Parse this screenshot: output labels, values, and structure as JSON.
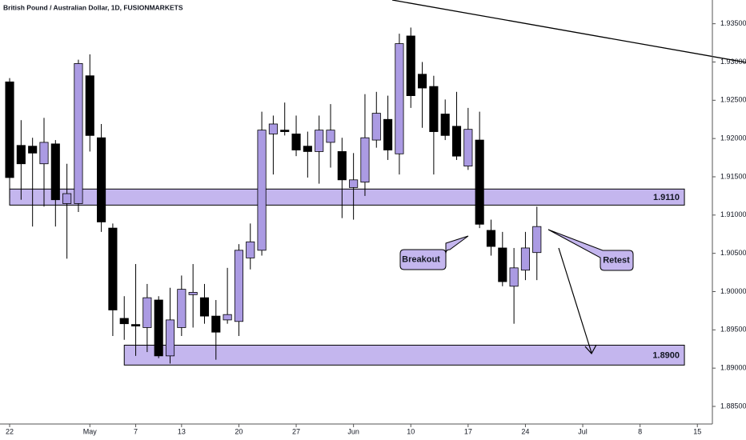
{
  "chart_data": {
    "type": "candlestick",
    "title": "British Pound / Australian Dollar, 1D, FUSIONMARKETS",
    "up_color": "#ab9be3",
    "down_color": "#000000",
    "zone_color": "#c4b6ee",
    "open": [
      1.9274,
      1.9191,
      1.919,
      1.9167,
      1.9193,
      1.9115,
      1.9115,
      1.9282,
      1.9201,
      1.9083,
      1.8965,
      1.8957,
      1.8953,
      1.8989,
      1.8916,
      1.8953,
      1.8996,
      1.8992,
      1.8968,
      1.8963,
      1.8961,
      1.9044,
      1.9054,
      1.9206,
      1.9211,
      1.9206,
      1.919,
      1.9183,
      1.9195,
      1.9183,
      1.9136,
      1.9143,
      1.9198,
      1.9225,
      1.918,
      1.9334,
      1.9284,
      1.9268,
      1.9232,
      1.9216,
      1.9164,
      1.9198,
      1.908,
      1.9057,
      1.9007,
      1.9028,
      1.9051
    ],
    "high": [
      1.9279,
      1.9224,
      1.9201,
      1.9227,
      1.9198,
      1.9167,
      1.9303,
      1.931,
      1.9219,
      1.9089,
      1.8994,
      1.9036,
      1.901,
      1.8994,
      1.9005,
      1.9021,
      1.9036,
      1.901,
      1.8989,
      1.9031,
      1.9062,
      1.9089,
      1.9235,
      1.923,
      1.9247,
      1.923,
      1.9209,
      1.923,
      1.9245,
      1.9201,
      1.9181,
      1.9258,
      1.9261,
      1.9256,
      1.9337,
      1.9345,
      1.93,
      1.9282,
      1.9251,
      1.9261,
      1.924,
      1.9235,
      1.9094,
      1.9078,
      1.9057,
      1.9078,
      1.9111
    ],
    "low": [
      1.9122,
      1.912,
      1.9085,
      1.9111,
      1.9085,
      1.9043,
      1.9104,
      1.9183,
      1.9078,
      1.8942,
      1.8937,
      1.8916,
      1.8921,
      1.8913,
      1.8906,
      1.8942,
      1.8953,
      1.8958,
      1.8911,
      1.8958,
      1.8942,
      1.9029,
      1.9047,
      1.9153,
      1.9204,
      1.9177,
      1.9149,
      1.9141,
      1.9162,
      1.9096,
      1.9094,
      1.9125,
      1.9188,
      1.9172,
      1.9153,
      1.924,
      1.9214,
      1.9153,
      1.9198,
      1.9172,
      1.9159,
      1.9083,
      1.9047,
      1.9007,
      1.8958,
      1.9015,
      1.9015
    ],
    "close": [
      1.9149,
      1.9167,
      1.9181,
      1.9195,
      1.912,
      1.9128,
      1.9298,
      1.9204,
      1.9091,
      1.8976,
      1.8958,
      1.8955,
      1.8992,
      1.8916,
      1.8963,
      1.9003,
      1.8999,
      1.8968,
      1.8947,
      1.897,
      1.9054,
      1.9065,
      1.9211,
      1.9219,
      1.9209,
      1.9185,
      1.9183,
      1.9211,
      1.9211,
      1.9146,
      1.9146,
      1.9201,
      1.9233,
      1.9185,
      1.9324,
      1.9256,
      1.9266,
      1.9209,
      1.9204,
      1.9177,
      1.9212,
      1.9088,
      1.9059,
      1.9013,
      1.9031,
      1.9057,
      1.9085
    ],
    "xlim": [
      -0.84,
      61.31
    ],
    "xticks": [
      {
        "value": 0,
        "label": "22"
      },
      {
        "value": 7,
        "label": "May"
      },
      {
        "value": 11,
        "label": "7"
      },
      {
        "value": 15,
        "label": "13"
      },
      {
        "value": 20,
        "label": "20"
      },
      {
        "value": 25,
        "label": "27"
      },
      {
        "value": 30,
        "label": "Jun"
      },
      {
        "value": 35,
        "label": "10"
      },
      {
        "value": 40,
        "label": "17"
      },
      {
        "value": 45,
        "label": "24"
      },
      {
        "value": 50,
        "label": "Jul"
      },
      {
        "value": 55,
        "label": "8"
      },
      {
        "value": 60,
        "label": "15"
      }
    ],
    "ylim": [
      1.8827,
      1.9381
    ],
    "yticks": [
      {
        "value": 1.935,
        "label": "1.93500"
      },
      {
        "value": 1.93,
        "label": "1.93000"
      },
      {
        "value": 1.925,
        "label": "1.92500"
      },
      {
        "value": 1.92,
        "label": "1.92000"
      },
      {
        "value": 1.915,
        "label": "1.91500"
      },
      {
        "value": 1.91,
        "label": "1.91000"
      },
      {
        "value": 1.905,
        "label": "1.90500"
      },
      {
        "value": 1.9,
        "label": "1.90000"
      },
      {
        "value": 1.895,
        "label": "1.89500"
      },
      {
        "value": 1.89,
        "label": "1.89000"
      },
      {
        "value": 1.885,
        "label": "1.88500"
      }
    ],
    "zones": [
      {
        "label": "1.9110",
        "low": 1.9113,
        "high": 1.9134,
        "start": 0,
        "end": 58.87
      },
      {
        "label": "1.8900",
        "low": 1.8904,
        "high": 1.893,
        "start": 10,
        "end": 58.87
      }
    ],
    "annotations": [
      "Breakout",
      "Retest"
    ]
  }
}
